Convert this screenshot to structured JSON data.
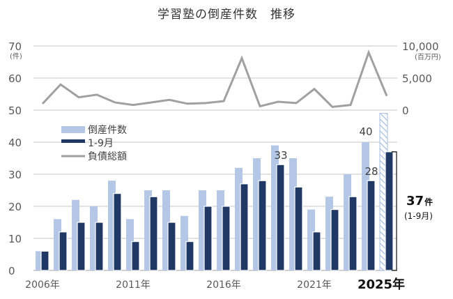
{
  "title": "学習塾の倒産件数　推移",
  "axes": {
    "left_ticks": [
      "0",
      "10",
      "20",
      "30",
      "40",
      "50",
      "60",
      "70"
    ],
    "left_unit": "(件)",
    "right_ticks": [
      "0",
      "5,000",
      "10,000"
    ],
    "right_unit": "(百万円)",
    "x_ticks": [
      {
        "label": "2006年",
        "index": 0
      },
      {
        "label": "2011年",
        "index": 5
      },
      {
        "label": "2016年",
        "index": 10
      },
      {
        "label": "2021年",
        "index": 15
      }
    ],
    "x_highlight": {
      "label": "2025年",
      "index": 19
    }
  },
  "legend": {
    "items": [
      {
        "label": "倒産件数",
        "type": "bar",
        "color": "#b4c7e7"
      },
      {
        "label": "1-9月",
        "type": "bar",
        "color": "#1f3864"
      },
      {
        "label": "負債総額",
        "type": "line",
        "color": "#a0a0a0"
      }
    ]
  },
  "data_labels": [
    {
      "index": 13,
      "text": "33",
      "series": "1-9月"
    },
    {
      "index": 18,
      "text": "40",
      "series": "倒産件数"
    },
    {
      "index": 18,
      "text": "28",
      "series": "1-9月"
    }
  ],
  "callout": {
    "value": "37",
    "unit": "件",
    "note": "(1-9月)"
  },
  "chart_data": {
    "type": "bar",
    "title": "学習塾の倒産件数　推移",
    "xlabel": "",
    "ylabel": "件",
    "y2label": "百万円",
    "ylim": [
      0,
      70
    ],
    "y2lim": [
      0,
      10000
    ],
    "grid": true,
    "legend_position": "upper-left inside",
    "categories": [
      "2006",
      "2007",
      "2008",
      "2009",
      "2010",
      "2011",
      "2012",
      "2013",
      "2014",
      "2015",
      "2016",
      "2017",
      "2018",
      "2019",
      "2020",
      "2021",
      "2022",
      "2023",
      "2024",
      "2025"
    ],
    "series": [
      {
        "name": "倒産件数",
        "type": "bar",
        "axis": "left",
        "color": "#b4c7e7",
        "values": [
          6,
          16,
          22,
          20,
          28,
          16,
          25,
          25,
          17,
          25,
          25,
          32,
          35,
          39,
          35,
          19,
          23,
          30,
          40,
          49
        ],
        "note": "2025 value is hatched (projected full-year)"
      },
      {
        "name": "1-9月",
        "type": "bar",
        "axis": "left",
        "color": "#1f3864",
        "values": [
          6,
          12,
          15,
          15,
          24,
          9,
          23,
          15,
          9,
          20,
          20,
          27,
          28,
          33,
          26,
          12,
          19,
          23,
          28,
          37
        ]
      },
      {
        "name": "負債総額",
        "type": "line",
        "axis": "right",
        "color": "#a0a0a0",
        "values": [
          1000,
          4000,
          2000,
          2400,
          1200,
          800,
          1200,
          1600,
          1000,
          1100,
          1400,
          8100,
          600,
          1300,
          1100,
          3300,
          500,
          800,
          9000,
          2200
        ]
      }
    ]
  }
}
